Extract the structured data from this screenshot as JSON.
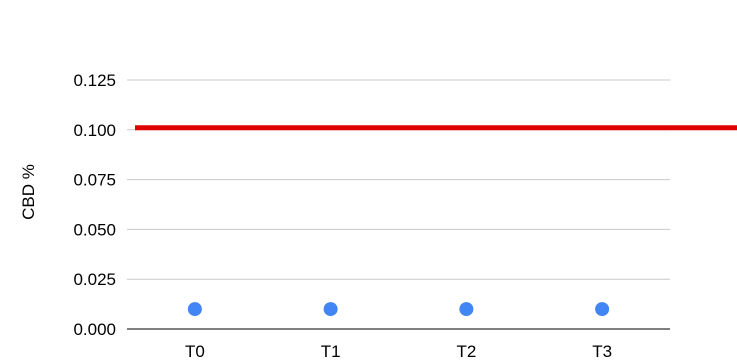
{
  "chart_data": {
    "type": "scatter",
    "title": "",
    "xlabel": "",
    "ylabel": "CBD %",
    "categories": [
      "T0",
      "T1",
      "T2",
      "T3"
    ],
    "series": [
      {
        "values": [
          0.01,
          0.01,
          0.01,
          0.01
        ],
        "color": "#4285f4"
      }
    ],
    "ylim": [
      0,
      0.125
    ],
    "yticks": [
      "0.000",
      "0.025",
      "0.050",
      "0.075",
      "0.100",
      "0.125"
    ],
    "reference_line": {
      "value": 0.101,
      "color": "#e00000"
    },
    "grid": true,
    "legend": "none"
  }
}
